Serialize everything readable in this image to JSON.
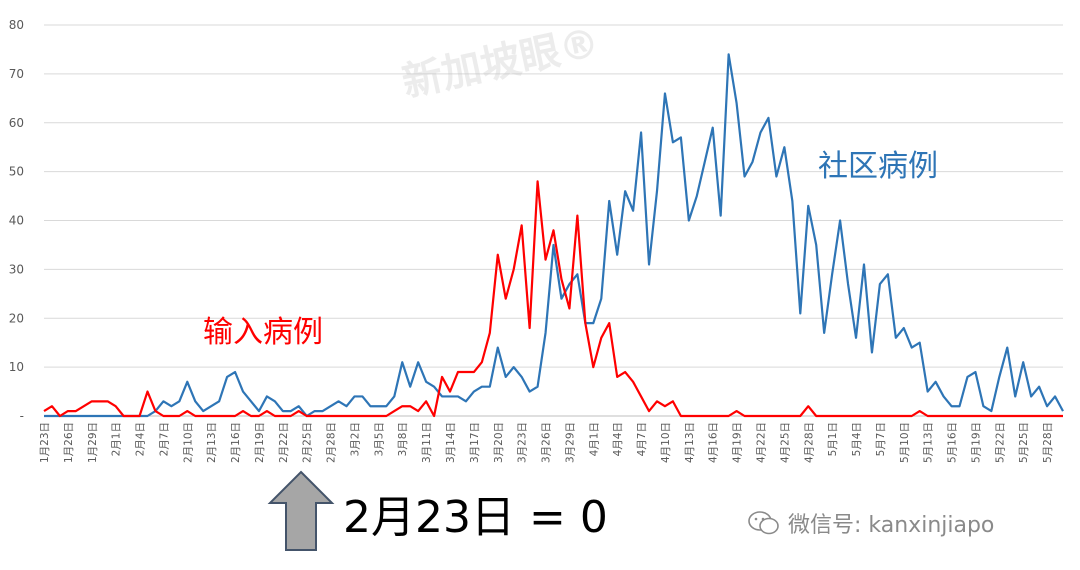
{
  "chart_data": {
    "type": "line",
    "ylim": [
      0,
      80
    ],
    "yticks": [
      "-",
      "10",
      "20",
      "30",
      "40",
      "50",
      "60",
      "70",
      "80"
    ],
    "x_tick_labels": [
      "1月23日",
      "1月26日",
      "1月29日",
      "2月1日",
      "2月4日",
      "2月7日",
      "2月10日",
      "2月13日",
      "2月16日",
      "2月19日",
      "2月22日",
      "2月25日",
      "2月28日",
      "3月2日",
      "3月5日",
      "3月8日",
      "3月11日",
      "3月14日",
      "3月17日",
      "3月20日",
      "3月23日",
      "3月26日",
      "3月29日",
      "4月1日",
      "4月4日",
      "4月7日",
      "4月10日",
      "4月13日",
      "4月16日",
      "4月19日",
      "4月22日",
      "4月25日",
      "4月28日",
      "5月1日",
      "5月4日",
      "5月7日",
      "5月10日",
      "5月13日",
      "5月16日",
      "5月19日",
      "5月22日",
      "5月25日",
      "5月28日"
    ],
    "series": [
      {
        "name": "社区病例",
        "color": "#2e75b6",
        "values": [
          0,
          0,
          0,
          0,
          0,
          0,
          0,
          0,
          0,
          0,
          0,
          0,
          0,
          0,
          1,
          3,
          2,
          3,
          7,
          3,
          1,
          2,
          3,
          8,
          9,
          5,
          3,
          1,
          4,
          3,
          1,
          1,
          2,
          0,
          1,
          1,
          2,
          3,
          2,
          4,
          4,
          2,
          2,
          2,
          4,
          11,
          6,
          11,
          7,
          6,
          4,
          4,
          4,
          3,
          5,
          6,
          6,
          14,
          8,
          10,
          8,
          5,
          6,
          17,
          35,
          24,
          27,
          29,
          19,
          19,
          24,
          44,
          33,
          46,
          42,
          58,
          31,
          46,
          66,
          56,
          57,
          40,
          45,
          52,
          59,
          41,
          74,
          64,
          49,
          52,
          58,
          61,
          49,
          55,
          44,
          21,
          43,
          35,
          17,
          29,
          40,
          27,
          16,
          31,
          13,
          27,
          29,
          16,
          18,
          14,
          15,
          5,
          7,
          4,
          2,
          2,
          8,
          9,
          2,
          1,
          8,
          14,
          4,
          11,
          4,
          6,
          2,
          4,
          1
        ]
      },
      {
        "name": "输入病例",
        "color": "#ff0000",
        "values": [
          1,
          2,
          0,
          1,
          1,
          2,
          3,
          3,
          3,
          2,
          0,
          0,
          0,
          5,
          1,
          0,
          0,
          0,
          1,
          0,
          0,
          0,
          0,
          0,
          0,
          1,
          0,
          0,
          1,
          0,
          0,
          0,
          1,
          0,
          0,
          0,
          0,
          0,
          0,
          0,
          0,
          0,
          0,
          0,
          1,
          2,
          2,
          1,
          3,
          0,
          8,
          5,
          9,
          9,
          9,
          11,
          17,
          33,
          24,
          30,
          39,
          18,
          48,
          32,
          38,
          28,
          22,
          41,
          19,
          10,
          16,
          19,
          8,
          9,
          7,
          4,
          1,
          3,
          2,
          3,
          0,
          0,
          0,
          0,
          0,
          0,
          0,
          1,
          0,
          0,
          0,
          0,
          0,
          0,
          0,
          0,
          2,
          0,
          0,
          0,
          0,
          0,
          0,
          0,
          0,
          0,
          0,
          0,
          0,
          0,
          1,
          0,
          0,
          0,
          0,
          0,
          0,
          0,
          0,
          0,
          0,
          0,
          0,
          0,
          0,
          0,
          0,
          0,
          0
        ]
      }
    ],
    "series_label_text": [
      "社区病例",
      "输入病例"
    ],
    "annotation": {
      "text": "2月23日 = 0",
      "arrow_x_label": "2月23日"
    }
  },
  "watermark": {
    "text": "新加坡眼®"
  },
  "footer": {
    "wechat_label": "微信号: kanxinjiapo",
    "wechat_icon": "wechat-icon"
  }
}
